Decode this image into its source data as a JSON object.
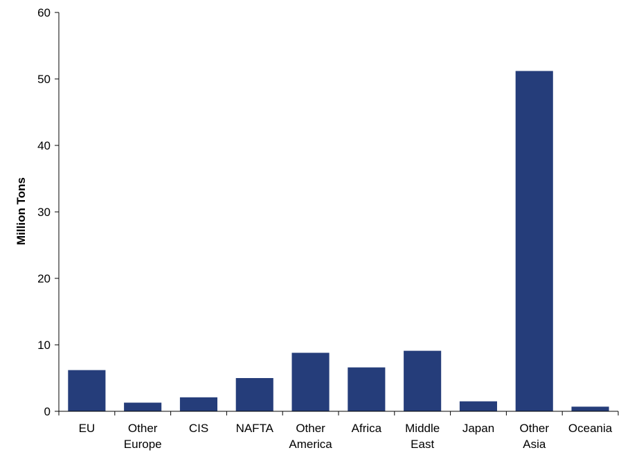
{
  "chart_data": {
    "type": "bar",
    "title": "",
    "xlabel": "",
    "ylabel": "Million Tons",
    "ylim": [
      0,
      60
    ],
    "yticks": [
      0,
      10,
      20,
      30,
      40,
      50,
      60
    ],
    "grid": false,
    "legend": "none",
    "bar_color": "#253d7a",
    "categories": [
      [
        "EU"
      ],
      [
        "Other",
        "Europe"
      ],
      [
        "CIS"
      ],
      [
        "NAFTA"
      ],
      [
        "Other",
        "America"
      ],
      [
        "Africa"
      ],
      [
        "Middle",
        "East"
      ],
      [
        "Japan"
      ],
      [
        "Other",
        "Asia"
      ],
      [
        "Oceania"
      ]
    ],
    "values": [
      6.2,
      1.3,
      2.1,
      5.0,
      8.8,
      6.6,
      9.1,
      1.5,
      51.2,
      0.7
    ]
  }
}
